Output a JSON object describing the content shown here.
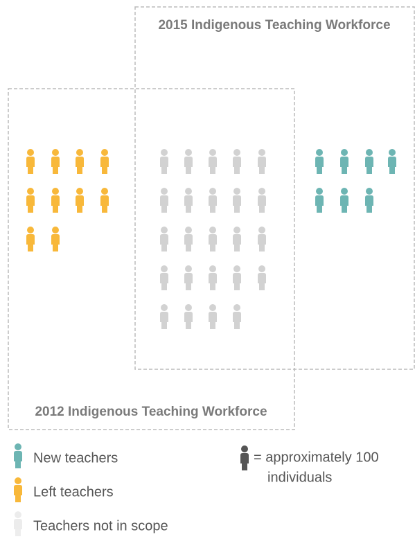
{
  "chart_data": {
    "type": "pictograph",
    "groups": [
      "2015 Indigenous Teaching Workforce",
      "2012 Indigenous Teaching Workforce"
    ],
    "series": [
      {
        "name": "New teachers",
        "color": "#6db5b3",
        "values": [
          7
        ]
      },
      {
        "name": "Left teachers",
        "color": "#f8b83a",
        "values": [
          10
        ]
      },
      {
        "name": "Teachers not in scope",
        "color": "#d2d2d2",
        "values": [
          24
        ]
      }
    ],
    "unit_color": "#555555",
    "unit_label": [
      "= approximately 100",
      "individuals"
    ]
  }
}
